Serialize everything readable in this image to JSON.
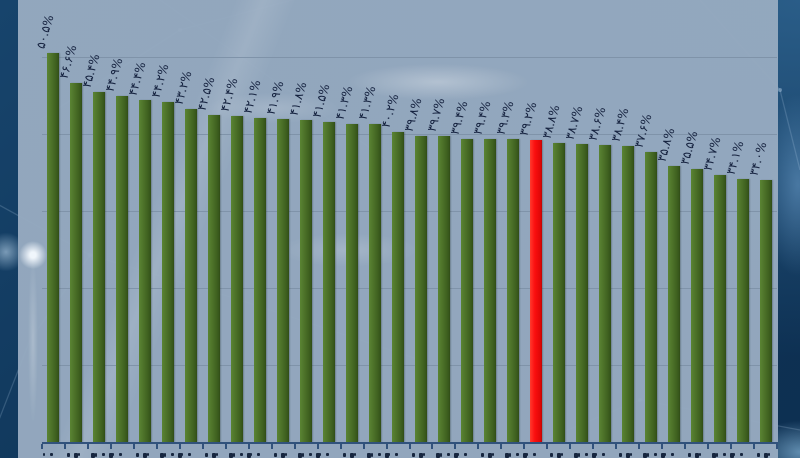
{
  "chart_data": {
    "type": "bar",
    "title": "",
    "xlabel": "",
    "ylabel": "",
    "values": [
      50.5,
      46.6,
      45.4,
      44.9,
      44.4,
      44.2,
      43.2,
      42.5,
      42.4,
      42.1,
      41.9,
      41.8,
      41.5,
      41.3,
      41.3,
      40.2,
      39.8,
      39.7,
      39.4,
      39.4,
      39.3,
      39.2,
      38.8,
      38.7,
      38.6,
      38.4,
      37.6,
      35.8,
      35.5,
      34.7,
      34.1,
      34.0
    ],
    "values_display": [
      "۵۰.۵%",
      "۴۶.۶%",
      "۴۵.۴%",
      "۴۴.۹%",
      "۴۴.۴%",
      "۴۴.۲%",
      "۴۳.۲%",
      "۴۲.۵%",
      "۴۲.۴%",
      "۴۲.۱%",
      "۴۱.۹%",
      "۴۱.۸%",
      "۴۱.۵%",
      "۴۱.۳%",
      "۴۱.۳%",
      "۴۰.۲%",
      "۳۹.۸%",
      "۳۹.۷%",
      "۳۹.۴%",
      "۳۹.۴%",
      "۳۹.۳%",
      "۳۹.۲%",
      "۳۸.۸%",
      "۳۸.۷%",
      "۳۸.۶%",
      "۳۸.۴%",
      "۳۷.۶%",
      "۳۵.۸%",
      "۳۵.۵%",
      "۳۴.۷%",
      "۳۴.۱%",
      "۳۴.۰%"
    ],
    "bar_count": 32,
    "highlighted_index": 21,
    "highlighted_value_display": "۳۹.۲%",
    "ylim": [
      0,
      52
    ],
    "gridline_interval_percent": 10,
    "grid": "horizontal gridlines at 10/20/30/40/50%",
    "legend": "none",
    "categories_note": "x-axis category labels are cropped out at the bottom edge of the screenshot; only glyph tops visible",
    "value_label_language": "Persian (Farsi) numerals, rotated diagonally above each bar"
  },
  "colors": {
    "bar_green": "#4a6f27",
    "bar_highlight_red": "#fb0f0f",
    "plot_background": "#96aac0",
    "gridline": "#7f93a9",
    "axis_line": "#31527c",
    "value_label_text": "#15223f",
    "page_background_dark_blue": "#10375b"
  }
}
